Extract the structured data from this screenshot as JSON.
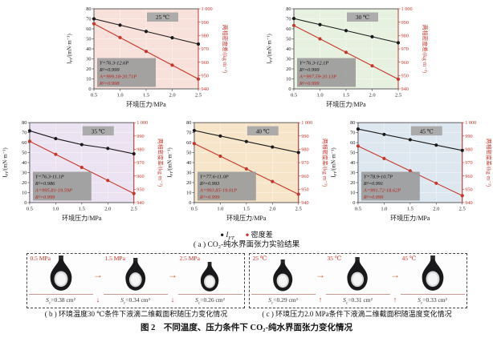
{
  "page": {
    "legend": [
      {
        "label": "I_{FT}",
        "color": "#1a1a1a",
        "italic": true
      },
      {
        "label": "密度差",
        "color": "#c8362b",
        "italic": false
      }
    ],
    "caption_a": "( a ) CO₂-纯水界面张力实验结果",
    "caption_b": "( b ) 环境温度30 ℃条件下液滴二维截面积随压力变化情况",
    "caption_c": "( c ) 环境压力2.0 MPa条件下液滴二维截面积随温度变化情况",
    "main_caption": "图 2　不同温度、压力条件下 CO₂-纯水界面张力变化情况"
  },
  "chart_data": [
    {
      "type": "line",
      "temperature": "25 ℃",
      "bg": "#f8e1da",
      "xlabel": "环境压力/MPa",
      "ylabel_left": "I_{FT}/(mN·m⁻¹)",
      "ylabel_right": "两相密度差/(kg·m⁻³)",
      "x": [
        0.5,
        1.0,
        1.5,
        2.0,
        2.5
      ],
      "xlim": [
        0.5,
        2.5
      ],
      "ylim_left": [
        0,
        80
      ],
      "ylim_right": [
        940,
        1000
      ],
      "series": [
        {
          "name": "I_FT",
          "axis": "left",
          "color": "#1a1a1a",
          "values": [
            70.0,
            63.7,
            57.4,
            51.1,
            44.8
          ],
          "fit_label": "Y=76.3-12.6P",
          "r2_label": "R²=0.999"
        },
        {
          "name": "密度差",
          "axis": "right",
          "color": "#c8362b",
          "values": [
            988.8,
            978.5,
            968.1,
            957.8,
            947.4
          ],
          "fit_label": "A=999.18-20.71P",
          "r2_label": "R²=0.998"
        }
      ]
    },
    {
      "type": "line",
      "temperature": "30 ℃",
      "bg": "#e6f1e0",
      "xlabel": "环境压力/MPa",
      "ylabel_left": "I_{FT}/(mN·m⁻¹)",
      "ylabel_right": "两相密度差/(kg·m⁻³)",
      "x": [
        0.5,
        1.0,
        1.5,
        2.0,
        2.5
      ],
      "xlim": [
        0.5,
        2.5
      ],
      "ylim_left": [
        0,
        80
      ],
      "ylim_right": [
        940,
        1000
      ],
      "series": [
        {
          "name": "I_FT",
          "axis": "left",
          "color": "#1a1a1a",
          "values": [
            70.3,
            64.2,
            58.2,
            52.1,
            46.1
          ],
          "fit_label": "Y=76.3-12.1P",
          "r2_label": "R²=0.999"
        },
        {
          "name": "密度差",
          "axis": "right",
          "color": "#c8362b",
          "values": [
            987.5,
            977.5,
            967.4,
            957.3,
            947.3
          ],
          "fit_label": "A=997.59-20.13P",
          "r2_label": "R²=0.999"
        }
      ]
    },
    {
      "type": "line",
      "temperature": "35 ℃",
      "bg": "#ebe3f1",
      "xlabel": "环境压力/MPa",
      "ylabel_left": "I_{FT}/(mN·m⁻¹)",
      "ylabel_right": "两相密度差/(kg·m⁻³)",
      "x": [
        0.5,
        1.0,
        1.5,
        2.0,
        2.5
      ],
      "xlim": [
        0.5,
        2.5
      ],
      "ylim_left": [
        0,
        80
      ],
      "ylim_right": [
        940,
        1000
      ],
      "series": [
        {
          "name": "I_FT",
          "axis": "left",
          "color": "#1a1a1a",
          "values": [
            71.8,
            64.0,
            58.0,
            54.2,
            48.8
          ],
          "fit_label": "Y=76.3-11.1P",
          "r2_label": "R²=0.986"
        },
        {
          "name": "密度差",
          "axis": "right",
          "color": "#c8362b",
          "values": [
            986.0,
            976.2,
            966.4,
            956.6,
            946.8
          ],
          "fit_label": "A=995.81-19.59P",
          "r2_label": "R²=0.999"
        }
      ]
    },
    {
      "type": "line",
      "temperature": "40 ℃",
      "bg": "#f6e5c8",
      "xlabel": "环境压力/MPa",
      "ylabel_left": "I_{FT}/(mN·m⁻¹)",
      "ylabel_right": "两相密度差/(kg·m⁻³)",
      "x": [
        0.5,
        1.0,
        1.5,
        2.0,
        2.5
      ],
      "xlim": [
        0.5,
        2.5
      ],
      "ylim_left": [
        0,
        80
      ],
      "ylim_right": [
        940,
        1000
      ],
      "series": [
        {
          "name": "I_FT",
          "axis": "left",
          "color": "#1a1a1a",
          "values": [
            72.1,
            66.6,
            61.1,
            55.6,
            50.1
          ],
          "fit_label": "Y=77.6-11.0P",
          "r2_label": "R²=0.993"
        },
        {
          "name": "密度差",
          "axis": "right",
          "color": "#c8362b",
          "values": [
            984.3,
            974.8,
            965.3,
            955.8,
            946.3
          ],
          "fit_label": "A=993.85-19.01P",
          "r2_label": "R²=0.999"
        }
      ]
    },
    {
      "type": "line",
      "temperature": "45 ℃",
      "bg": "#dde7ef",
      "xlabel": "环境压力/MPa",
      "ylabel_left": "I_{FT}/(mN·m⁻¹)",
      "ylabel_right": "两相密度差/(kg·m⁻³)",
      "x": [
        0.5,
        1.0,
        1.5,
        2.0,
        2.5
      ],
      "xlim": [
        0.5,
        2.5
      ],
      "ylim_left": [
        0,
        80
      ],
      "ylim_right": [
        940,
        1000
      ],
      "series": [
        {
          "name": "I_FT",
          "axis": "left",
          "color": "#1a1a1a",
          "values": [
            73.6,
            68.2,
            62.9,
            57.5,
            52.2
          ],
          "fit_label": "Y=78.9-10.7P",
          "r2_label": "R²=0.991"
        },
        {
          "name": "密度差",
          "axis": "right",
          "color": "#c8362b",
          "values": [
            982.4,
            973.1,
            963.8,
            954.5,
            945.2
          ],
          "fit_label": "A=991.72-18.62P",
          "r2_label": "R²=0.999"
        }
      ]
    }
  ],
  "panels": {
    "b": {
      "items": [
        {
          "condition": "0.5 MPa",
          "area": "S_{c}=0.38 cm²",
          "scale": 1.0
        },
        {
          "condition": "1.5 MPa",
          "area": "S_{c}=0.34 cm²",
          "scale": 0.93
        },
        {
          "condition": "2.5 MPa",
          "area": "S_{c}=0.26 cm²",
          "scale": 0.84
        }
      ],
      "between_arrow": "→",
      "trend_arrow": "↓"
    },
    "c": {
      "items": [
        {
          "condition": "25 ℃",
          "area": "S_{c}=0.29 cm²",
          "scale": 0.9
        },
        {
          "condition": "35 ℃",
          "area": "S_{c}=0.31 cm²",
          "scale": 0.95
        },
        {
          "condition": "45 ℃",
          "area": "S_{c}=0.33 cm²",
          "scale": 1.0
        }
      ],
      "between_arrow": "→",
      "trend_arrow": "↑"
    }
  }
}
